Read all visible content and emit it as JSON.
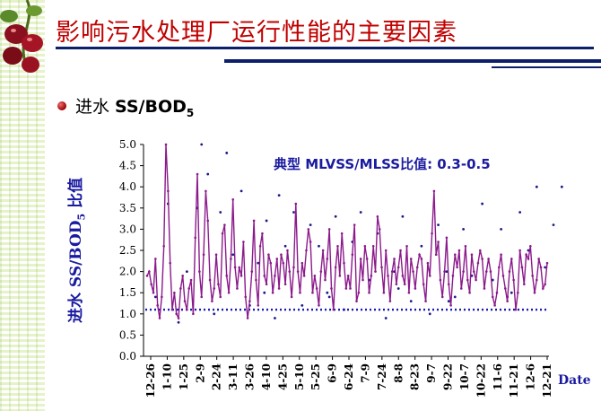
{
  "slide": {
    "title": "影响污水处理厂运行性能的主要因素",
    "bullet_prefix": "进水 ",
    "bullet_main": "SS/BOD",
    "bullet_sub": "5",
    "colors": {
      "title": "#c00000",
      "rule": "#0b1f6b",
      "annotation": "#1a1aa0"
    }
  },
  "chart_data": {
    "type": "line",
    "annotation": "典型 MLVSS/MLSS比值: 0.3-0.5",
    "ylabel_main": "进水 SS/BOD",
    "ylabel_sub": "5",
    "ylabel_tail": " 比值",
    "xlabel": "Date",
    "ylim": [
      0,
      5
    ],
    "y_ticks": [
      "0.0",
      "0.5",
      "1.0",
      "1.5",
      "2.0",
      "2.5",
      "3.0",
      "3.5",
      "4.0",
      "4.5",
      "5.0"
    ],
    "x_ticks": [
      "12-26",
      "1-10",
      "1-25",
      "2-9",
      "2-24",
      "3-11",
      "3-26",
      "4-10",
      "4-25",
      "5-10",
      "5-25",
      "6-9",
      "6-24",
      "7-9",
      "7-24",
      "8-8",
      "8-23",
      "9-7",
      "9-22",
      "10-7",
      "10-22",
      "11-6",
      "11-21",
      "12-6",
      "12-21"
    ],
    "reference_line": 1.1,
    "series": [
      {
        "values": [
          1.9,
          2.0,
          1.7,
          1.5,
          2.3,
          1.2,
          0.9,
          1.4,
          2.6,
          5.0,
          3.9,
          2.2,
          1.1,
          1.5,
          1.0,
          0.9,
          1.6,
          1.9,
          1.3,
          1.1,
          1.6,
          1.8,
          1.0,
          2.8,
          4.3,
          2.0,
          1.4,
          2.4,
          3.9,
          3.2,
          1.8,
          1.3,
          1.6,
          2.4,
          1.7,
          1.4,
          2.9,
          3.1,
          1.9,
          1.5,
          2.3,
          3.7,
          2.1,
          1.6,
          2.1,
          1.9,
          2.7,
          1.4,
          0.9,
          1.3,
          2.0,
          3.2,
          1.8,
          1.2,
          2.6,
          2.9,
          1.9,
          1.7,
          2.4,
          2.2,
          1.5,
          1.9,
          2.3,
          1.6,
          2.4,
          2.2,
          1.7,
          2.5,
          2.0,
          1.4,
          2.1,
          3.6,
          2.0,
          1.5,
          2.2,
          1.9,
          2.5,
          3.0,
          2.7,
          1.5,
          1.9,
          1.6,
          1.2,
          2.0,
          2.5,
          1.8,
          2.3,
          3.0,
          1.6,
          1.1,
          2.1,
          2.6,
          1.9,
          2.9,
          2.2,
          1.6,
          1.9,
          1.6,
          2.4,
          3.1,
          1.3,
          1.5,
          2.3,
          1.8,
          2.6,
          2.3,
          1.5,
          1.9,
          2.6,
          2.0,
          3.3,
          3.0,
          2.1,
          1.5,
          2.5,
          1.9,
          1.3,
          2.0,
          2.3,
          1.7,
          2.1,
          2.5,
          1.9,
          1.7,
          2.6,
          1.5,
          2.3,
          2.0,
          1.6,
          2.1,
          2.4,
          2.3,
          1.7,
          1.3,
          2.2,
          1.9,
          2.9,
          3.9,
          2.4,
          2.7,
          1.8,
          1.4,
          2.0,
          2.8,
          1.7,
          1.2,
          1.9,
          2.4,
          2.1,
          2.5,
          1.6,
          2.0,
          2.6,
          1.8,
          1.5,
          2.4,
          2.0,
          1.8,
          2.2,
          2.5,
          2.3,
          1.6,
          2.0,
          2.3,
          2.0,
          1.4,
          1.2,
          1.5,
          2.1,
          2.4,
          1.9,
          1.6,
          1.3,
          2.0,
          2.3,
          1.8,
          1.1,
          1.5,
          2.5,
          2.1,
          1.7,
          2.4,
          2.3,
          2.6,
          1.9,
          1.5,
          1.8,
          2.3,
          2.1,
          1.6,
          1.7,
          2.2
        ]
      }
    ],
    "scatter_points": [
      [
        4,
        1.4
      ],
      [
        10,
        3.6
      ],
      [
        15,
        0.8
      ],
      [
        19,
        2.0
      ],
      [
        24,
        3.5
      ],
      [
        26,
        5.0
      ],
      [
        29,
        4.3
      ],
      [
        32,
        1.0
      ],
      [
        35,
        3.4
      ],
      [
        38,
        4.8
      ],
      [
        41,
        2.4
      ],
      [
        45,
        3.9
      ],
      [
        49,
        1.2
      ],
      [
        53,
        2.2
      ],
      [
        57,
        3.2
      ],
      [
        61,
        0.9
      ],
      [
        63,
        3.8
      ],
      [
        66,
        2.6
      ],
      [
        70,
        3.4
      ],
      [
        74,
        1.2
      ],
      [
        78,
        3.1
      ],
      [
        82,
        2.6
      ],
      [
        86,
        1.5
      ],
      [
        90,
        3.3
      ],
      [
        94,
        1.1
      ],
      [
        98,
        2.7
      ],
      [
        102,
        3.4
      ],
      [
        106,
        1.8
      ],
      [
        110,
        2.9
      ],
      [
        114,
        0.9
      ],
      [
        118,
        2.0
      ],
      [
        122,
        3.3
      ],
      [
        126,
        1.3
      ],
      [
        131,
        2.6
      ],
      [
        135,
        1.0
      ],
      [
        139,
        3.1
      ],
      [
        143,
        2.0
      ],
      [
        147,
        1.4
      ],
      [
        151,
        3.0
      ],
      [
        155,
        1.9
      ],
      [
        160,
        3.6
      ],
      [
        165,
        1.8
      ],
      [
        169,
        3.0
      ],
      [
        174,
        1.5
      ],
      [
        178,
        3.4
      ],
      [
        182,
        2.5
      ],
      [
        186,
        4.0
      ],
      [
        190,
        2.1
      ],
      [
        194,
        3.1
      ],
      [
        198,
        4.0
      ],
      [
        56,
        1.5
      ],
      [
        87,
        1.4
      ],
      [
        120,
        1.6
      ],
      [
        172,
        1.4
      ],
      [
        144,
        1.3
      ]
    ],
    "colors": {
      "line": "#8b1a8b",
      "reference": "#1a1ab4",
      "points": "#1a1a8a"
    }
  }
}
